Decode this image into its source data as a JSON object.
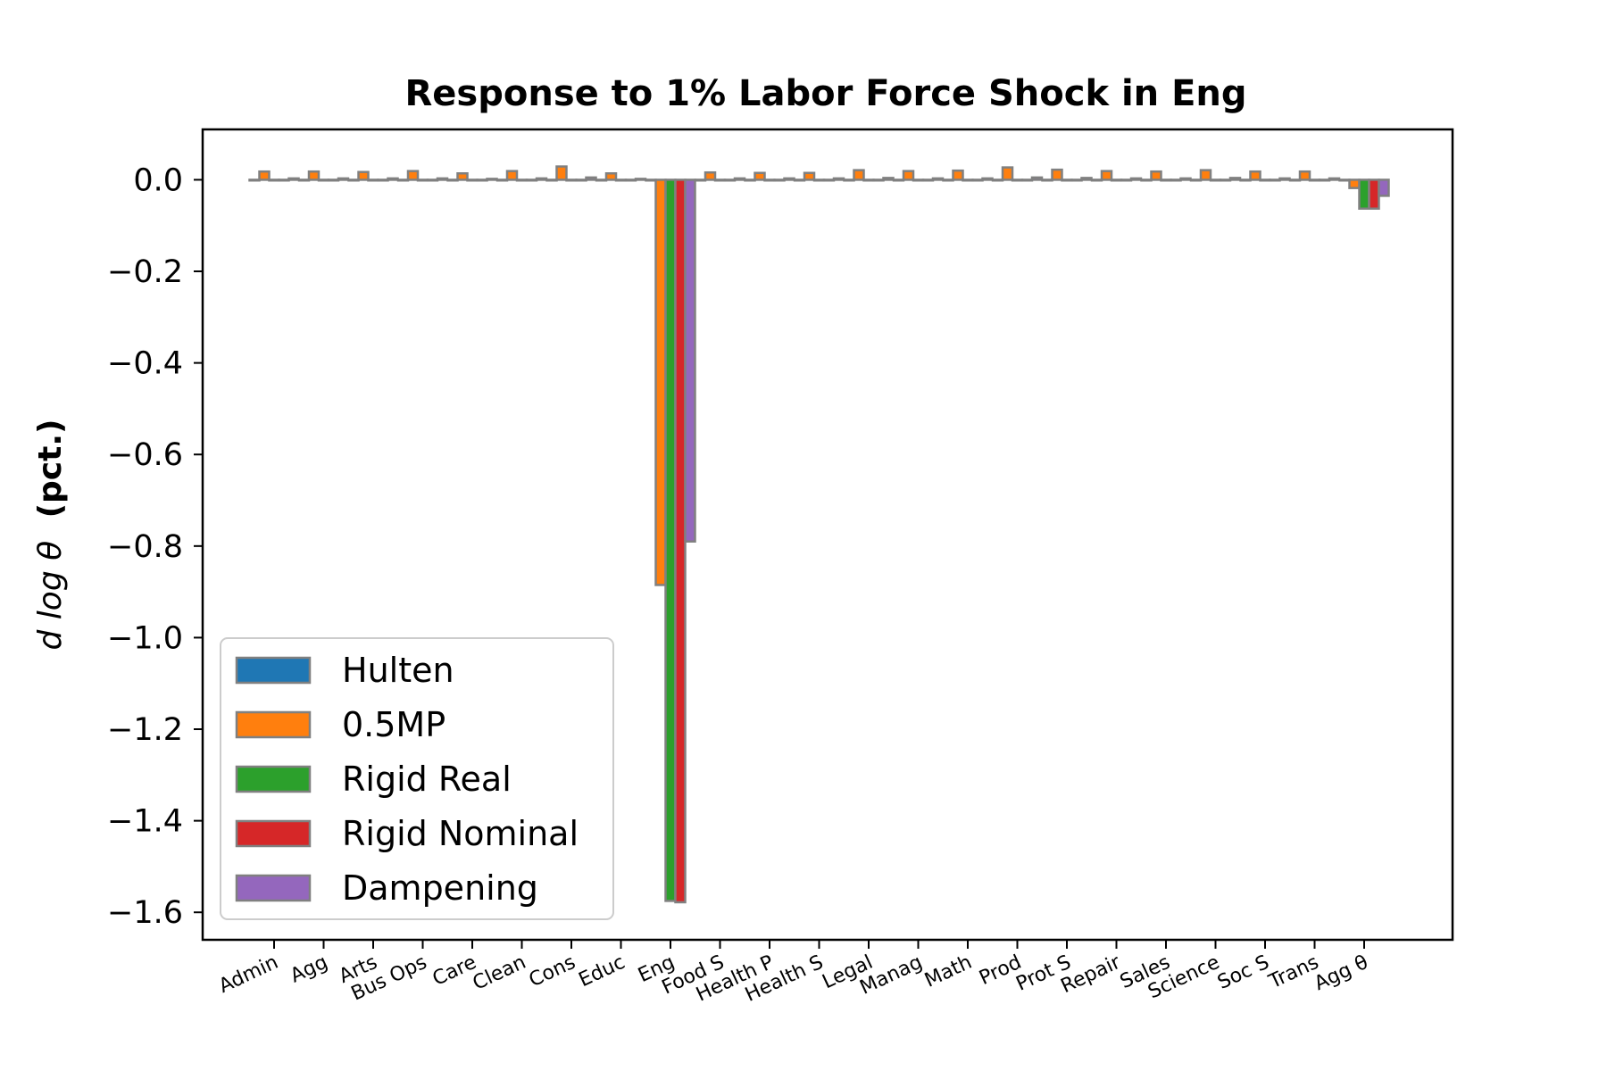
{
  "chart_data": {
    "type": "bar",
    "title": "Response to 1% Labor Force Shock in Eng",
    "ylabel_italic": "d log θ",
    "ylabel_bold": "(pct.)",
    "ylim": [
      -1.66,
      0.11
    ],
    "yticks": [
      0.0,
      -0.2,
      -0.4,
      -0.6,
      -0.8,
      -1.0,
      -1.2,
      -1.4,
      -1.6
    ],
    "ytick_labels": [
      "0.0",
      "−0.2",
      "−0.4",
      "−0.6",
      "−0.8",
      "−1.0",
      "−1.2",
      "−1.4",
      "−1.6"
    ],
    "grid": false,
    "legend_position": "lower-left",
    "bar_edge_color": "#808080",
    "categories": [
      "Admin",
      "Agg",
      "Arts",
      "Bus Ops",
      "Care",
      "Clean",
      "Cons",
      "Educ",
      "Eng",
      "Food S",
      "Health P",
      "Health S",
      "Legal",
      "Manag",
      "Math",
      "Prod",
      "Prot S",
      "Repair",
      "Sales",
      "Science",
      "Soc S",
      "Trans",
      "Agg θ"
    ],
    "series": [
      {
        "name": "Hulten",
        "color": "#1f77b4",
        "values": [
          0,
          0,
          0,
          0,
          0,
          0,
          0,
          0,
          0,
          0,
          0,
          0,
          0,
          0,
          0,
          0,
          0,
          0,
          0,
          0,
          0,
          0,
          0
        ]
      },
      {
        "name": "0.5MP",
        "color": "#ff7f0e",
        "values": [
          0.018,
          0.018,
          0.017,
          0.019,
          0.014,
          0.019,
          0.029,
          0.014,
          -0.885,
          0.016,
          0.015,
          0.015,
          0.021,
          0.019,
          0.02,
          0.027,
          0.022,
          0.019,
          0.018,
          0.021,
          0.018,
          0.018,
          -0.018
        ]
      },
      {
        "name": "Rigid Real",
        "color": "#2ca02c",
        "values": [
          0,
          0,
          0,
          0,
          0,
          0,
          0,
          0,
          -1.575,
          0,
          0,
          0,
          0,
          0,
          0,
          0,
          0,
          0,
          0,
          0,
          0,
          0,
          -0.063
        ]
      },
      {
        "name": "Rigid Nominal",
        "color": "#d62728",
        "values": [
          0,
          0,
          0,
          0,
          0,
          0,
          0,
          0,
          -1.578,
          0,
          0,
          0,
          0,
          0,
          0,
          0,
          0,
          0,
          0,
          0,
          0,
          0,
          -0.063
        ]
      },
      {
        "name": "Dampening",
        "color": "#9467bd",
        "values": [
          0.003,
          0.003,
          0.003,
          0.003,
          0.002,
          0.003,
          0.005,
          0.002,
          -0.79,
          0.003,
          0.003,
          0.003,
          0.004,
          0.003,
          0.003,
          0.005,
          0.004,
          0.003,
          0.003,
          0.004,
          0.003,
          0.003,
          -0.035
        ]
      }
    ]
  }
}
